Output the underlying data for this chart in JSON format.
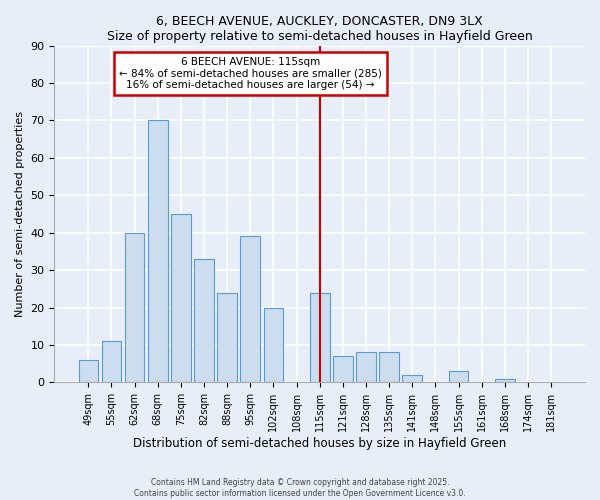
{
  "title": "6, BEECH AVENUE, AUCKLEY, DONCASTER, DN9 3LX",
  "subtitle": "Size of property relative to semi-detached houses in Hayfield Green",
  "xlabel": "Distribution of semi-detached houses by size in Hayfield Green",
  "ylabel": "Number of semi-detached properties",
  "bin_labels": [
    "49sqm",
    "55sqm",
    "62sqm",
    "68sqm",
    "75sqm",
    "82sqm",
    "88sqm",
    "95sqm",
    "102sqm",
    "108sqm",
    "115sqm",
    "121sqm",
    "128sqm",
    "135sqm",
    "141sqm",
    "148sqm",
    "155sqm",
    "161sqm",
    "168sqm",
    "174sqm",
    "181sqm"
  ],
  "bar_values": [
    6,
    11,
    40,
    70,
    45,
    33,
    24,
    39,
    20,
    0,
    24,
    7,
    8,
    8,
    2,
    0,
    3,
    0,
    1,
    0,
    0
  ],
  "bar_color": "#ccddf0",
  "bar_edge_color": "#5b9bd5",
  "vline_x": 10,
  "vline_color": "#cc0000",
  "annotation_title": "6 BEECH AVENUE: 115sqm",
  "annotation_line1": "← 84% of semi-detached houses are smaller (285)",
  "annotation_line2": "16% of semi-detached houses are larger (54) →",
  "annotation_box_color": "#ffffff",
  "annotation_border_color": "#cc0000",
  "ylim": [
    0,
    90
  ],
  "yticks": [
    0,
    10,
    20,
    30,
    40,
    50,
    60,
    70,
    80,
    90
  ],
  "background_color": "#e8eef8",
  "grid_color": "#ffffff",
  "footer_line1": "Contains HM Land Registry data © Crown copyright and database right 2025.",
  "footer_line2": "Contains public sector information licensed under the Open Government Licence v3.0."
}
